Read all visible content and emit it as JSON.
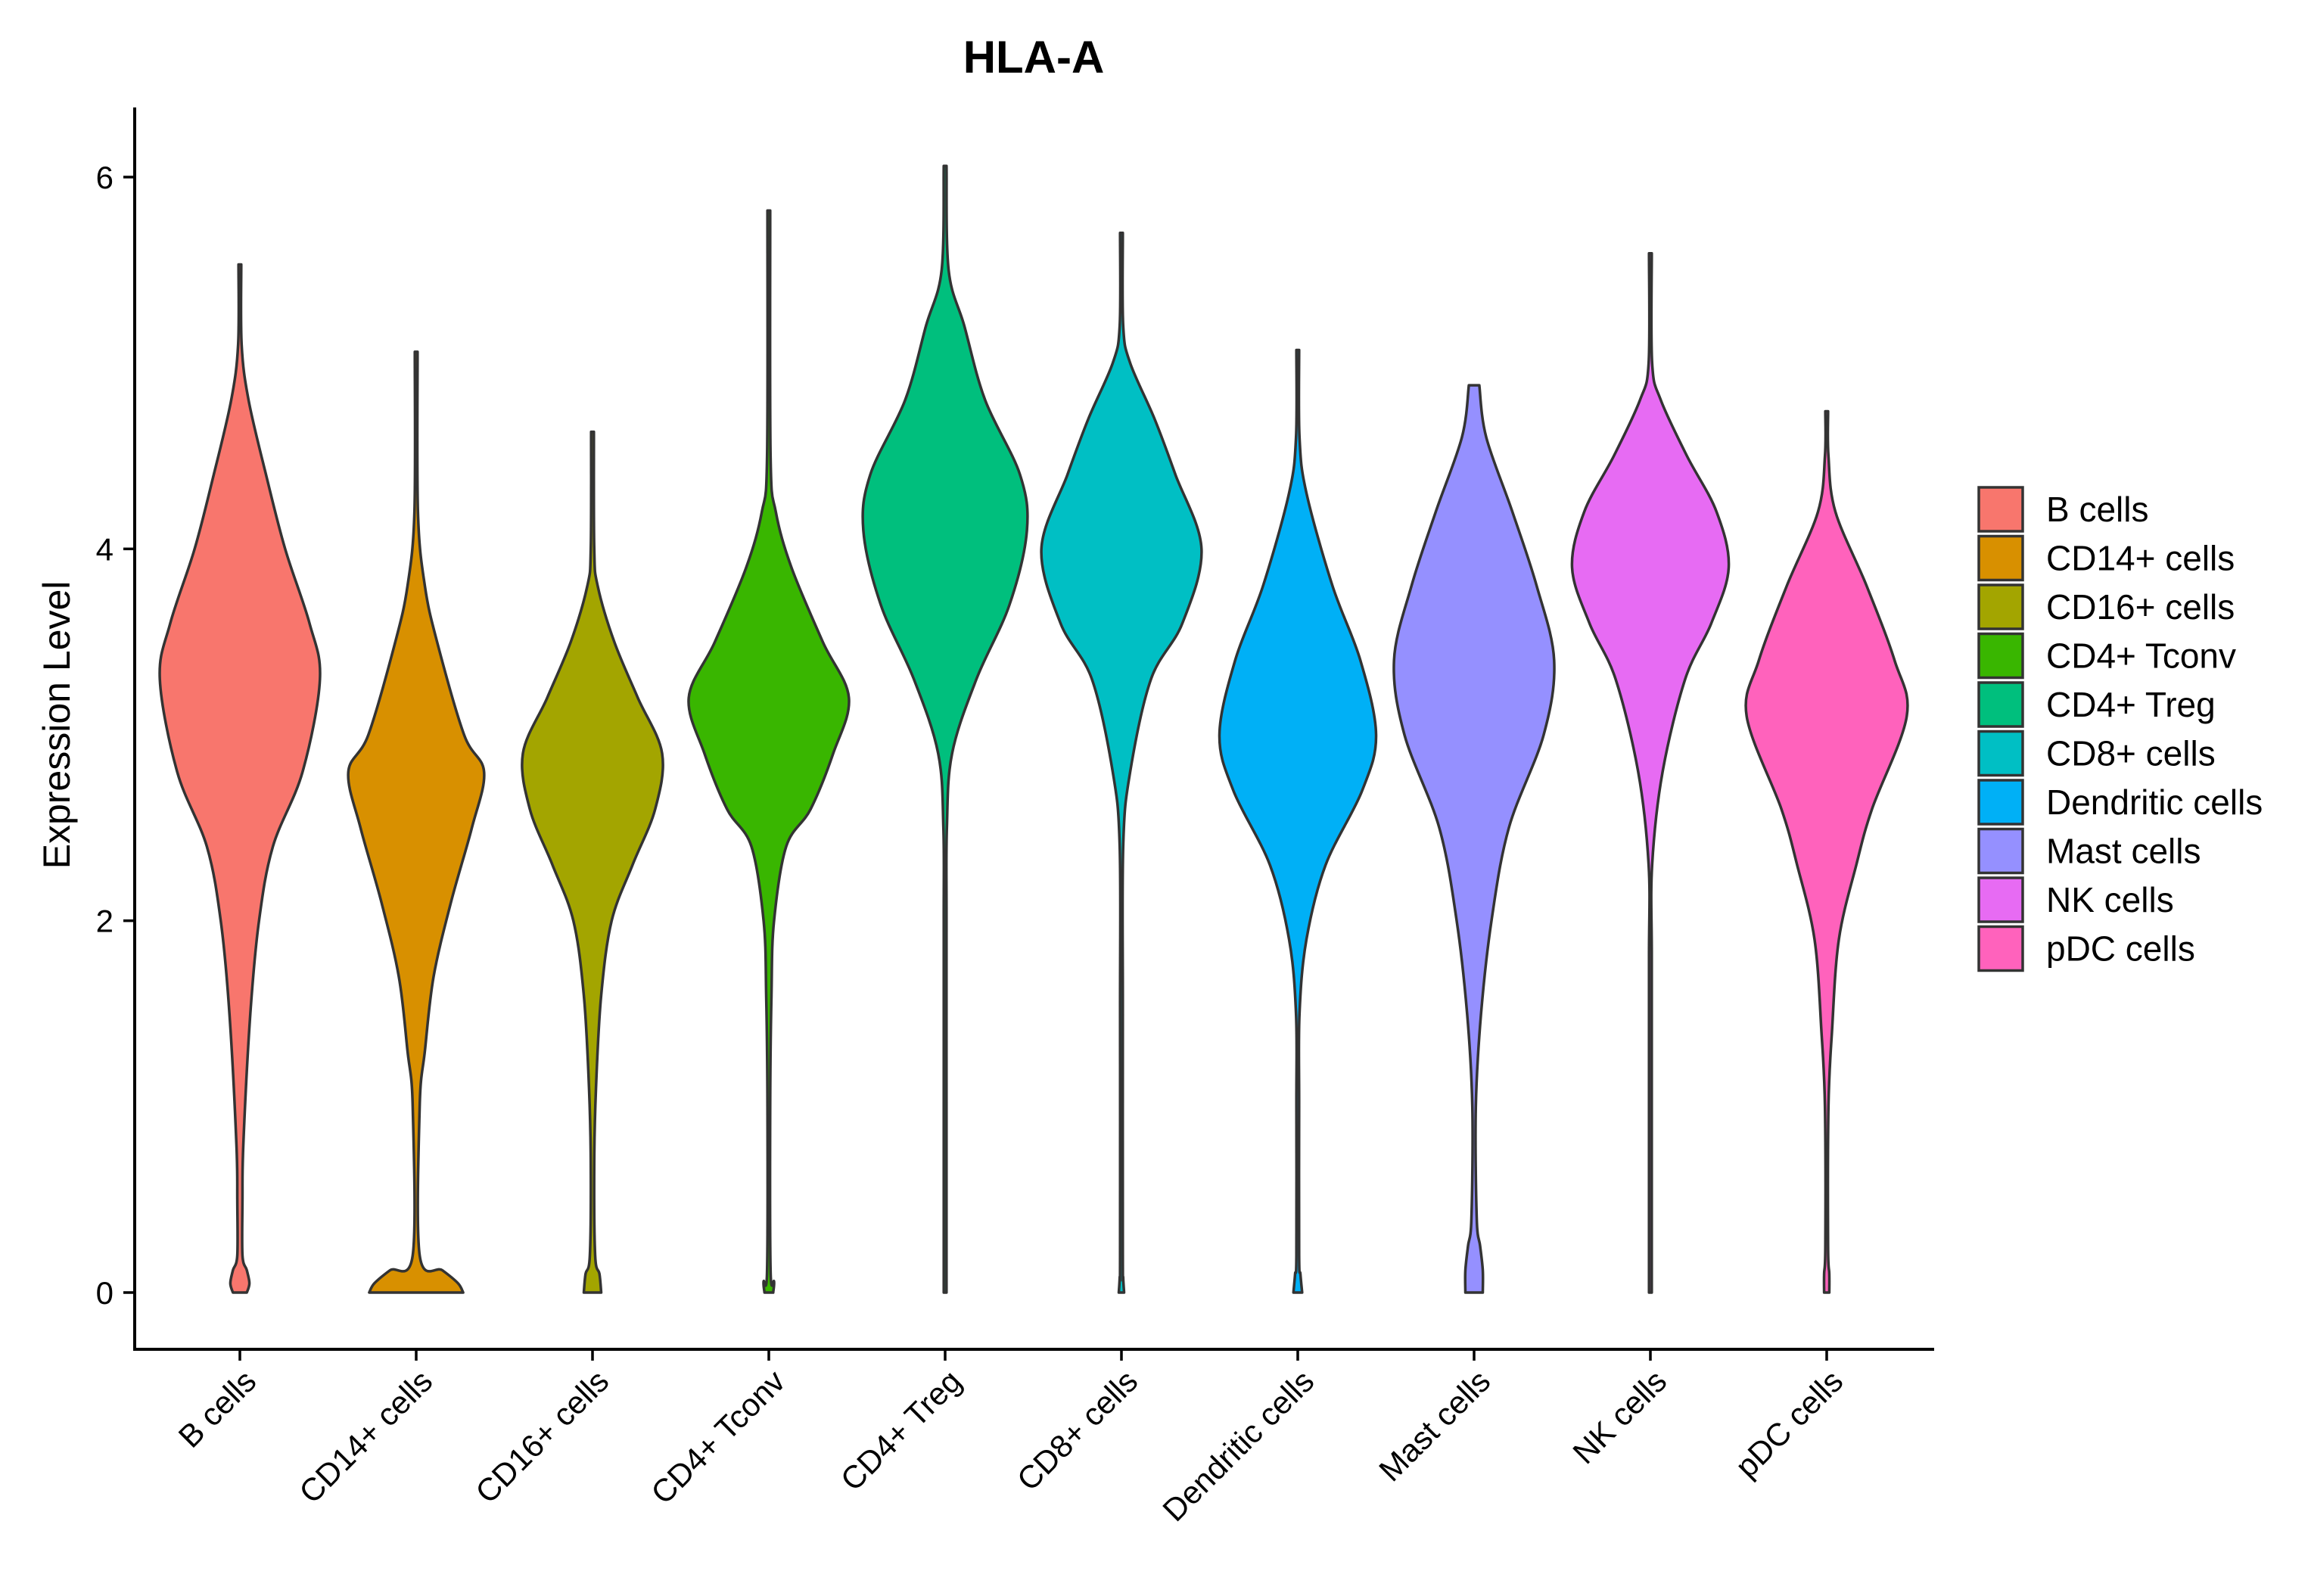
{
  "chart_data": {
    "type": "violin",
    "title": "HLA-A",
    "xlabel": "",
    "ylabel": "Expression Level",
    "ylim": [
      -0.3,
      6.4
    ],
    "yticks": [
      0,
      2,
      4,
      6
    ],
    "grid": false,
    "legend_position": "right",
    "categories": [
      "B cells",
      "CD14+ cells",
      "CD16+ cells",
      "CD4+ Tconv",
      "CD4+ Treg",
      "CD8+ cells",
      "Dendritic cells",
      "Mast cells",
      "NK cells",
      "pDC cells"
    ],
    "colors": [
      "#F8766D",
      "#D89000",
      "#A3A500",
      "#39B600",
      "#00BF7D",
      "#00BFC4",
      "#00B0F6",
      "#9590FF",
      "#E76BF3",
      "#FF62BC"
    ],
    "violins": [
      {
        "name": "B cells",
        "min": 0,
        "max": 5.53,
        "profile": [
          [
            0,
            0.08
          ],
          [
            0.05,
            0.11
          ],
          [
            0.12,
            0.08
          ],
          [
            0.2,
            0.03
          ],
          [
            0.5,
            0.03
          ],
          [
            0.8,
            0.04
          ],
          [
            1.5,
            0.12
          ],
          [
            2.0,
            0.22
          ],
          [
            2.4,
            0.38
          ],
          [
            2.8,
            0.72
          ],
          [
            3.3,
            0.92
          ],
          [
            3.6,
            0.8
          ],
          [
            4.0,
            0.52
          ],
          [
            4.4,
            0.3
          ],
          [
            4.8,
            0.1
          ],
          [
            5.1,
            0.02
          ],
          [
            5.53,
            0
          ]
        ]
      },
      {
        "name": "CD14+ cells",
        "min": 0,
        "max": 5.06,
        "profile": [
          [
            0,
            0.54
          ],
          [
            0.05,
            0.48
          ],
          [
            0.12,
            0.3
          ],
          [
            0.2,
            0.04
          ],
          [
            1.0,
            0.04
          ],
          [
            1.3,
            0.1
          ],
          [
            1.7,
            0.2
          ],
          [
            2.1,
            0.4
          ],
          [
            2.5,
            0.64
          ],
          [
            2.8,
            0.78
          ],
          [
            3.0,
            0.55
          ],
          [
            3.5,
            0.24
          ],
          [
            3.8,
            0.1
          ],
          [
            4.2,
            0.02
          ],
          [
            5.06,
            0
          ]
        ]
      },
      {
        "name": "CD16+ cells",
        "min": 0,
        "max": 4.63,
        "profile": [
          [
            0,
            0.1
          ],
          [
            0.1,
            0.08
          ],
          [
            0.2,
            0.03
          ],
          [
            0.7,
            0.02
          ],
          [
            1.1,
            0.04
          ],
          [
            1.6,
            0.1
          ],
          [
            2.0,
            0.22
          ],
          [
            2.3,
            0.46
          ],
          [
            2.6,
            0.72
          ],
          [
            2.9,
            0.8
          ],
          [
            3.2,
            0.52
          ],
          [
            3.5,
            0.25
          ],
          [
            3.8,
            0.06
          ],
          [
            4.0,
            0.02
          ],
          [
            4.63,
            0
          ]
        ]
      },
      {
        "name": "CD4+ Tconv",
        "min": 0,
        "max": 5.82,
        "profile": [
          [
            0,
            0.05
          ],
          [
            0.06,
            0.06
          ],
          [
            0.12,
            0.02
          ],
          [
            1.0,
            0.01
          ],
          [
            1.6,
            0.03
          ],
          [
            2.0,
            0.06
          ],
          [
            2.4,
            0.2
          ],
          [
            2.6,
            0.48
          ],
          [
            2.9,
            0.74
          ],
          [
            3.2,
            0.92
          ],
          [
            3.5,
            0.62
          ],
          [
            3.9,
            0.26
          ],
          [
            4.2,
            0.08
          ],
          [
            4.5,
            0.02
          ],
          [
            5.82,
            0
          ]
        ]
      },
      {
        "name": "CD4+ Treg",
        "min": 0,
        "max": 6.06,
        "profile": [
          [
            0,
            0.01
          ],
          [
            1.0,
            0.01
          ],
          [
            2.0,
            0.01
          ],
          [
            2.5,
            0.02
          ],
          [
            2.9,
            0.08
          ],
          [
            3.3,
            0.36
          ],
          [
            3.7,
            0.74
          ],
          [
            4.1,
            0.94
          ],
          [
            4.4,
            0.86
          ],
          [
            4.8,
            0.46
          ],
          [
            5.2,
            0.22
          ],
          [
            5.5,
            0.04
          ],
          [
            6.06,
            0
          ]
        ]
      },
      {
        "name": "CD8+ cells",
        "min": 0,
        "max": 5.7,
        "profile": [
          [
            0,
            0.03
          ],
          [
            0.08,
            0.02
          ],
          [
            0.2,
            0.01
          ],
          [
            1.5,
            0.01
          ],
          [
            2.4,
            0.02
          ],
          [
            2.8,
            0.1
          ],
          [
            3.3,
            0.34
          ],
          [
            3.6,
            0.7
          ],
          [
            4.0,
            0.92
          ],
          [
            4.4,
            0.62
          ],
          [
            4.7,
            0.38
          ],
          [
            5.0,
            0.1
          ],
          [
            5.2,
            0.02
          ],
          [
            5.7,
            0
          ]
        ]
      },
      {
        "name": "Dendritic cells",
        "min": 0,
        "max": 5.07,
        "profile": [
          [
            0,
            0.05
          ],
          [
            0.1,
            0.03
          ],
          [
            0.2,
            0.01
          ],
          [
            1.0,
            0.01
          ],
          [
            1.5,
            0.02
          ],
          [
            1.9,
            0.1
          ],
          [
            2.3,
            0.32
          ],
          [
            2.7,
            0.74
          ],
          [
            3.0,
            0.9
          ],
          [
            3.4,
            0.72
          ],
          [
            3.8,
            0.4
          ],
          [
            4.3,
            0.1
          ],
          [
            4.6,
            0.02
          ],
          [
            5.07,
            0
          ]
        ]
      },
      {
        "name": "Mast cells",
        "min": 0,
        "max": 4.88,
        "profile": [
          [
            0,
            0.1
          ],
          [
            0.12,
            0.1
          ],
          [
            0.25,
            0.07
          ],
          [
            0.4,
            0.03
          ],
          [
            1.0,
            0.02
          ],
          [
            1.5,
            0.08
          ],
          [
            2.0,
            0.2
          ],
          [
            2.5,
            0.4
          ],
          [
            3.0,
            0.8
          ],
          [
            3.4,
            0.92
          ],
          [
            3.8,
            0.72
          ],
          [
            4.2,
            0.44
          ],
          [
            4.6,
            0.14
          ],
          [
            4.88,
            0.06
          ]
        ]
      },
      {
        "name": "NK cells",
        "min": 0,
        "max": 5.59,
        "profile": [
          [
            0,
            0.01
          ],
          [
            1.0,
            0.01
          ],
          [
            1.8,
            0.01
          ],
          [
            2.3,
            0.02
          ],
          [
            2.8,
            0.14
          ],
          [
            3.3,
            0.4
          ],
          [
            3.6,
            0.7
          ],
          [
            3.9,
            0.9
          ],
          [
            4.2,
            0.76
          ],
          [
            4.5,
            0.42
          ],
          [
            4.8,
            0.12
          ],
          [
            5.0,
            0.02
          ],
          [
            5.59,
            0
          ]
        ]
      },
      {
        "name": "pDC cells",
        "min": 0,
        "max": 4.74,
        "profile": [
          [
            0,
            0.03
          ],
          [
            0.1,
            0.03
          ],
          [
            0.25,
            0.01
          ],
          [
            1.0,
            0.02
          ],
          [
            1.4,
            0.06
          ],
          [
            1.9,
            0.14
          ],
          [
            2.3,
            0.34
          ],
          [
            2.6,
            0.52
          ],
          [
            3.1,
            0.92
          ],
          [
            3.4,
            0.78
          ],
          [
            3.8,
            0.46
          ],
          [
            4.2,
            0.1
          ],
          [
            4.5,
            0.02
          ],
          [
            4.74,
            0
          ]
        ]
      }
    ]
  }
}
